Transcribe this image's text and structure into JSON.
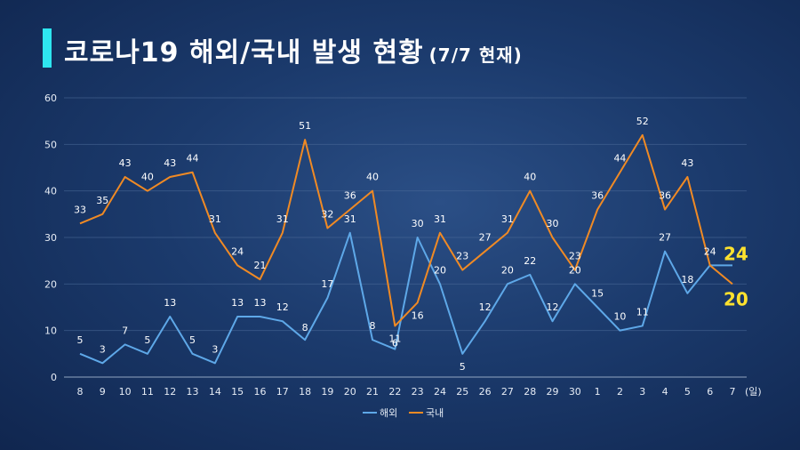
{
  "header": {
    "title": "코로나19 해외/국내 발생 현황",
    "subtitle": "(7/7 현재)"
  },
  "chart_data": {
    "type": "line",
    "categories": [
      "8",
      "9",
      "10",
      "11",
      "12",
      "13",
      "14",
      "15",
      "16",
      "17",
      "18",
      "19",
      "20",
      "21",
      "22",
      "23",
      "24",
      "25",
      "26",
      "27",
      "28",
      "29",
      "30",
      "1",
      "2",
      "3",
      "4",
      "5",
      "6",
      "7"
    ],
    "x_unit": "(일)",
    "ylim": [
      0,
      60
    ],
    "yticks": [
      0,
      10,
      20,
      30,
      40,
      50,
      60
    ],
    "grid": true,
    "legend_position": "bottom",
    "series": [
      {
        "name": "해외",
        "color": "#5ea8e8",
        "values": [
          5,
          3,
          7,
          5,
          13,
          5,
          3,
          13,
          13,
          12,
          8,
          17,
          31,
          8,
          6,
          30,
          20,
          5,
          12,
          20,
          22,
          12,
          20,
          15,
          10,
          11,
          27,
          18,
          24,
          24
        ],
        "labels": [
          "5",
          "3",
          "7",
          "5",
          "13",
          "5",
          "3",
          "13",
          "13",
          "12",
          "8",
          "17",
          "31",
          "8",
          "6",
          "30",
          "20",
          "5",
          "12",
          "20",
          "22",
          "12",
          "20",
          "15",
          "10",
          "11",
          "27",
          "18",
          "24",
          ""
        ]
      },
      {
        "name": "국내",
        "color": "#f08a24",
        "values": [
          33,
          35,
          43,
          40,
          43,
          44,
          31,
          24,
          21,
          31,
          51,
          32,
          36,
          40,
          11,
          16,
          31,
          23,
          27,
          31,
          40,
          30,
          23,
          36,
          44,
          52,
          36,
          43,
          24,
          20
        ],
        "labels": [
          "33",
          "35",
          "43",
          "40",
          "43",
          "44",
          "31",
          "24",
          "21",
          "31",
          "51",
          "32",
          "36",
          "40",
          "11",
          "16",
          "31",
          "23",
          "27",
          "31",
          "40",
          "30",
          "23",
          "36",
          "44",
          "52",
          "36",
          "43",
          "",
          ""
        ]
      }
    ],
    "callouts": {
      "overseas_last": "24",
      "domestic_last": "20"
    }
  }
}
